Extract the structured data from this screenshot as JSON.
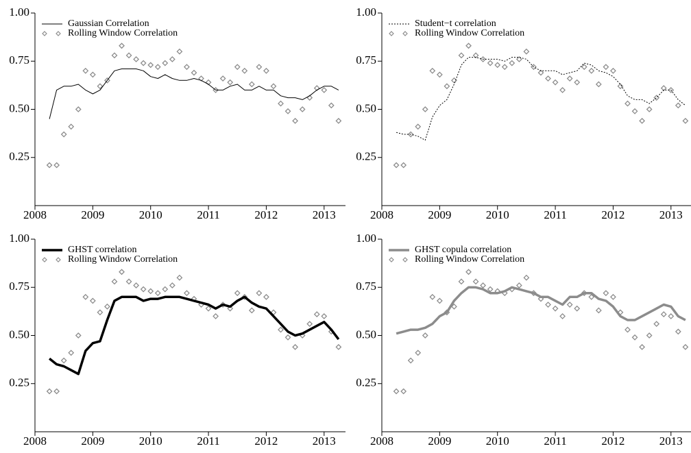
{
  "chart_data": [
    {
      "type": "line",
      "x": [
        2008.25,
        2008.375,
        2008.5,
        2008.625,
        2008.75,
        2008.875,
        2009.0,
        2009.125,
        2009.25,
        2009.375,
        2009.5,
        2009.625,
        2009.75,
        2009.875,
        2010.0,
        2010.125,
        2010.25,
        2010.375,
        2010.5,
        2010.625,
        2010.75,
        2010.875,
        2011.0,
        2011.125,
        2011.25,
        2011.375,
        2011.5,
        2011.625,
        2011.75,
        2011.875,
        2012.0,
        2012.125,
        2012.25,
        2012.375,
        2012.5,
        2012.625,
        2012.75,
        2012.875,
        2013.0,
        2013.125,
        2013.25
      ],
      "xlim": [
        2008,
        2013.37
      ],
      "xticks": [
        2008,
        2009,
        2010,
        2011,
        2012,
        2013
      ],
      "ylim": [
        0,
        1
      ],
      "yticks": [
        {
          "value": 1,
          "label": "1.00"
        },
        0.75,
        {
          "value": 0.5,
          "label": "0.50"
        },
        0.25
      ],
      "series": [
        {
          "name": "Gaussian Correlation",
          "color": "#000000",
          "style": "line",
          "width": 1,
          "dash": "solid",
          "values": [
            0.45,
            0.6,
            0.62,
            0.62,
            0.63,
            0.6,
            0.58,
            0.6,
            0.65,
            0.7,
            0.71,
            0.71,
            0.71,
            0.7,
            0.67,
            0.66,
            0.68,
            0.66,
            0.65,
            0.65,
            0.66,
            0.65,
            0.63,
            0.6,
            0.6,
            0.62,
            0.63,
            0.6,
            0.6,
            0.62,
            0.6,
            0.6,
            0.57,
            0.56,
            0.56,
            0.55,
            0.57,
            0.6,
            0.62,
            0.62,
            0.6
          ]
        },
        {
          "name": "Rolling Window Correlation",
          "color": "#8c8c8c",
          "style": "markers",
          "values": [
            0.21,
            0.21,
            0.37,
            0.41,
            0.5,
            0.7,
            0.68,
            0.62,
            0.65,
            0.78,
            0.83,
            0.78,
            0.76,
            0.74,
            0.73,
            0.72,
            0.74,
            0.76,
            0.8,
            0.72,
            0.69,
            0.66,
            0.64,
            0.6,
            0.66,
            0.64,
            0.72,
            0.7,
            0.63,
            0.72,
            0.7,
            0.62,
            0.53,
            0.49,
            0.44,
            0.5,
            0.56,
            0.61,
            0.6,
            0.52,
            0.44
          ]
        }
      ]
    },
    {
      "type": "line",
      "x": [
        2008.25,
        2008.375,
        2008.5,
        2008.625,
        2008.75,
        2008.875,
        2009.0,
        2009.125,
        2009.25,
        2009.375,
        2009.5,
        2009.625,
        2009.75,
        2009.875,
        2010.0,
        2010.125,
        2010.25,
        2010.375,
        2010.5,
        2010.625,
        2010.75,
        2010.875,
        2011.0,
        2011.125,
        2011.25,
        2011.375,
        2011.5,
        2011.625,
        2011.75,
        2011.875,
        2012.0,
        2012.125,
        2012.25,
        2012.375,
        2012.5,
        2012.625,
        2012.75,
        2012.875,
        2013.0,
        2013.125,
        2013.25
      ],
      "xlim": [
        2008,
        2013.37
      ],
      "xticks": [
        2008,
        2009,
        2010,
        2011,
        2012,
        2013
      ],
      "ylim": [
        0,
        1
      ],
      "yticks": [
        {
          "value": 1,
          "label": "1.00"
        },
        0.75,
        {
          "value": 0.5,
          "label": "0.50"
        },
        0.25
      ],
      "series": [
        {
          "name": "Student−t correlation",
          "color": "#000000",
          "style": "line",
          "width": 1,
          "dash": "dotted",
          "values": [
            0.38,
            0.37,
            0.37,
            0.36,
            0.34,
            0.46,
            0.52,
            0.55,
            0.63,
            0.73,
            0.77,
            0.77,
            0.76,
            0.76,
            0.76,
            0.75,
            0.77,
            0.77,
            0.76,
            0.72,
            0.7,
            0.7,
            0.7,
            0.68,
            0.69,
            0.7,
            0.74,
            0.73,
            0.7,
            0.69,
            0.67,
            0.63,
            0.57,
            0.55,
            0.55,
            0.53,
            0.56,
            0.6,
            0.6,
            0.55,
            0.52
          ]
        },
        {
          "name": "Rolling Window Correlation",
          "color": "#8c8c8c",
          "style": "markers",
          "values": [
            0.21,
            0.21,
            0.37,
            0.41,
            0.5,
            0.7,
            0.68,
            0.62,
            0.65,
            0.78,
            0.83,
            0.78,
            0.76,
            0.74,
            0.73,
            0.72,
            0.74,
            0.76,
            0.8,
            0.72,
            0.69,
            0.66,
            0.64,
            0.6,
            0.66,
            0.64,
            0.72,
            0.7,
            0.63,
            0.72,
            0.7,
            0.62,
            0.53,
            0.49,
            0.44,
            0.5,
            0.56,
            0.61,
            0.6,
            0.52,
            0.44
          ]
        }
      ]
    },
    {
      "type": "line",
      "x": [
        2008.25,
        2008.375,
        2008.5,
        2008.625,
        2008.75,
        2008.875,
        2009.0,
        2009.125,
        2009.25,
        2009.375,
        2009.5,
        2009.625,
        2009.75,
        2009.875,
        2010.0,
        2010.125,
        2010.25,
        2010.375,
        2010.5,
        2010.625,
        2010.75,
        2010.875,
        2011.0,
        2011.125,
        2011.25,
        2011.375,
        2011.5,
        2011.625,
        2011.75,
        2011.875,
        2012.0,
        2012.125,
        2012.25,
        2012.375,
        2012.5,
        2012.625,
        2012.75,
        2012.875,
        2013.0,
        2013.125,
        2013.25
      ],
      "xlim": [
        2008,
        2013.37
      ],
      "xticks": [
        2008,
        2009,
        2010,
        2011,
        2012,
        2013
      ],
      "ylim": [
        0,
        1
      ],
      "yticks": [
        {
          "value": 1,
          "label": "1.00"
        },
        0.75,
        {
          "value": 0.5,
          "label": "0.50"
        },
        0.25
      ],
      "series": [
        {
          "name": "GHST correlation",
          "color": "#000000",
          "style": "line",
          "width": 3.5,
          "dash": "solid",
          "values": [
            0.38,
            0.35,
            0.34,
            0.32,
            0.3,
            0.42,
            0.46,
            0.47,
            0.58,
            0.68,
            0.7,
            0.7,
            0.7,
            0.68,
            0.69,
            0.69,
            0.7,
            0.7,
            0.7,
            0.69,
            0.68,
            0.67,
            0.66,
            0.64,
            0.66,
            0.65,
            0.68,
            0.7,
            0.67,
            0.65,
            0.64,
            0.6,
            0.56,
            0.52,
            0.5,
            0.51,
            0.53,
            0.55,
            0.57,
            0.53,
            0.48
          ]
        },
        {
          "name": "Rolling Window Correlation",
          "color": "#8c8c8c",
          "style": "markers",
          "values": [
            0.21,
            0.21,
            0.37,
            0.41,
            0.5,
            0.7,
            0.68,
            0.62,
            0.65,
            0.78,
            0.83,
            0.78,
            0.76,
            0.74,
            0.73,
            0.72,
            0.74,
            0.76,
            0.8,
            0.72,
            0.69,
            0.66,
            0.64,
            0.6,
            0.66,
            0.64,
            0.72,
            0.7,
            0.63,
            0.72,
            0.7,
            0.62,
            0.53,
            0.49,
            0.44,
            0.5,
            0.56,
            0.61,
            0.6,
            0.52,
            0.44
          ]
        }
      ]
    },
    {
      "type": "line",
      "x": [
        2008.25,
        2008.375,
        2008.5,
        2008.625,
        2008.75,
        2008.875,
        2009.0,
        2009.125,
        2009.25,
        2009.375,
        2009.5,
        2009.625,
        2009.75,
        2009.875,
        2010.0,
        2010.125,
        2010.25,
        2010.375,
        2010.5,
        2010.625,
        2010.75,
        2010.875,
        2011.0,
        2011.125,
        2011.25,
        2011.375,
        2011.5,
        2011.625,
        2011.75,
        2011.875,
        2012.0,
        2012.125,
        2012.25,
        2012.375,
        2012.5,
        2012.625,
        2012.75,
        2012.875,
        2013.0,
        2013.125,
        2013.25
      ],
      "xlim": [
        2008,
        2013.37
      ],
      "xticks": [
        2008,
        2009,
        2010,
        2011,
        2012,
        2013
      ],
      "ylim": [
        0,
        1
      ],
      "yticks": [
        {
          "value": 1,
          "label": "1.00"
        },
        0.75,
        {
          "value": 0.5,
          "label": "0.50"
        },
        0.25
      ],
      "series": [
        {
          "name": "GHST copula correlation",
          "color": "#8c8c8c",
          "style": "line",
          "width": 3.5,
          "dash": "solid",
          "values": [
            0.51,
            0.52,
            0.53,
            0.53,
            0.54,
            0.56,
            0.6,
            0.62,
            0.68,
            0.72,
            0.75,
            0.75,
            0.74,
            0.72,
            0.72,
            0.73,
            0.75,
            0.74,
            0.73,
            0.72,
            0.7,
            0.7,
            0.68,
            0.66,
            0.7,
            0.7,
            0.72,
            0.72,
            0.69,
            0.68,
            0.65,
            0.6,
            0.58,
            0.58,
            0.6,
            0.62,
            0.64,
            0.66,
            0.65,
            0.6,
            0.58
          ]
        },
        {
          "name": "Rolling Window Correlation",
          "color": "#8c8c8c",
          "style": "markers",
          "values": [
            0.21,
            0.21,
            0.37,
            0.41,
            0.5,
            0.7,
            0.68,
            0.62,
            0.65,
            0.78,
            0.83,
            0.78,
            0.76,
            0.74,
            0.73,
            0.72,
            0.74,
            0.76,
            0.8,
            0.72,
            0.69,
            0.66,
            0.64,
            0.6,
            0.66,
            0.64,
            0.72,
            0.7,
            0.63,
            0.72,
            0.7,
            0.62,
            0.53,
            0.49,
            0.44,
            0.5,
            0.56,
            0.61,
            0.6,
            0.52,
            0.44
          ]
        }
      ]
    }
  ]
}
